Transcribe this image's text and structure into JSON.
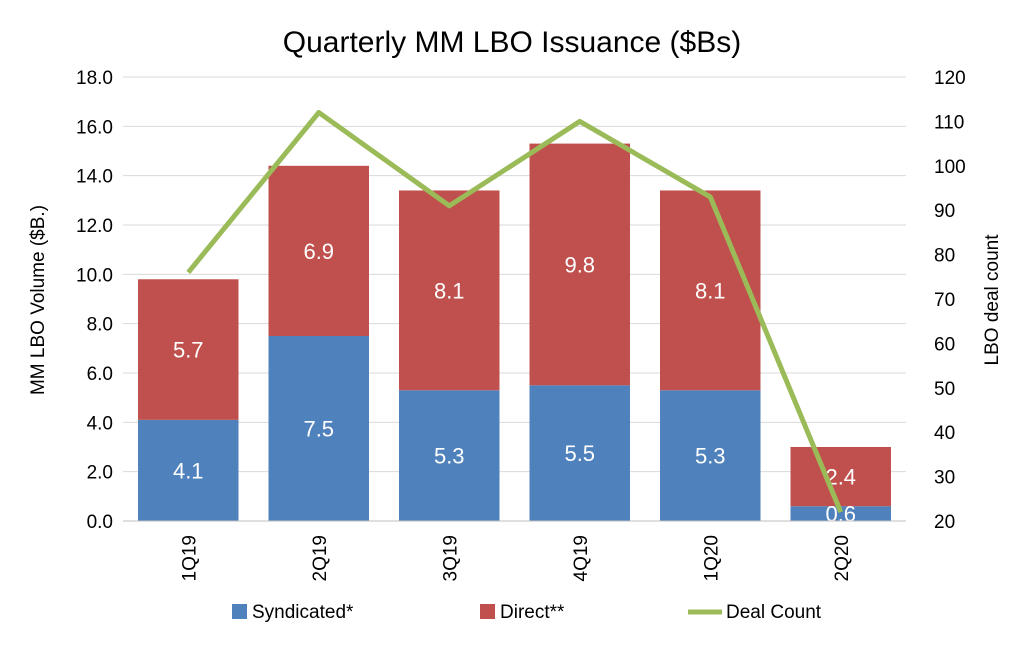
{
  "chart_data": {
    "type": "bar",
    "stacked": true,
    "title": "Quarterly MM LBO Issuance ($Bs)",
    "categories": [
      "1Q19",
      "2Q19",
      "3Q19",
      "4Q19",
      "1Q20",
      "2Q20"
    ],
    "series": [
      {
        "name": "Syndicated*",
        "type": "bar",
        "axis": "left",
        "color": "#4f81bd",
        "values": [
          4.1,
          7.5,
          5.3,
          5.5,
          5.3,
          0.6
        ]
      },
      {
        "name": "Direct**",
        "type": "bar",
        "axis": "left",
        "color": "#c0504d",
        "values": [
          5.7,
          6.9,
          8.1,
          9.8,
          8.1,
          2.4
        ]
      },
      {
        "name": "Deal Count",
        "type": "line",
        "axis": "right",
        "color": "#9bbb59",
        "values": [
          76,
          112,
          91,
          110,
          93,
          22
        ]
      }
    ],
    "y_left": {
      "label": "MM LBO Volume ($B.)",
      "min": 0,
      "max": 18,
      "step": 2,
      "ticks": [
        "0.0",
        "2.0",
        "4.0",
        "6.0",
        "8.0",
        "10.0",
        "12.0",
        "14.0",
        "16.0",
        "18.0"
      ]
    },
    "y_right": {
      "label": "LBO deal count",
      "min": 20,
      "max": 120,
      "step": 10,
      "ticks": [
        "20",
        "30",
        "40",
        "50",
        "60",
        "70",
        "80",
        "90",
        "100",
        "110",
        "120"
      ]
    },
    "grid": true,
    "legend": "bottom"
  }
}
